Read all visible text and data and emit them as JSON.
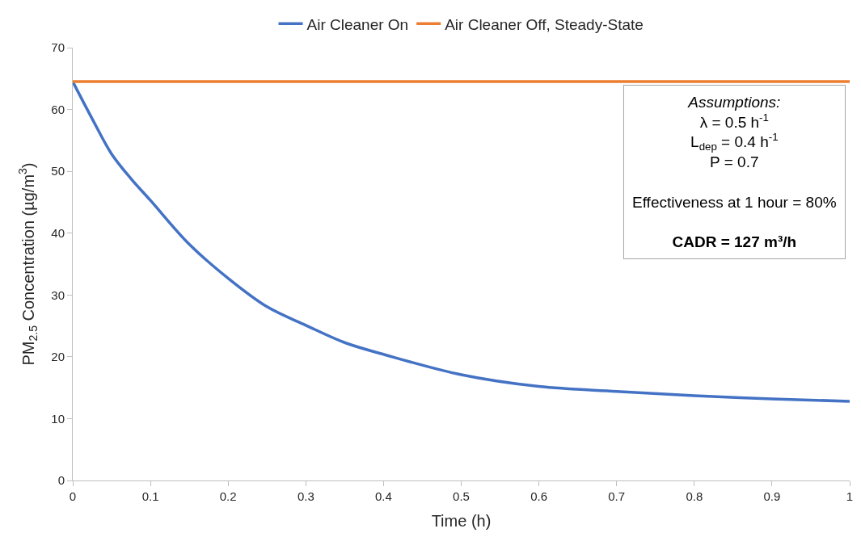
{
  "chart_data": {
    "type": "line",
    "xlabel": "Time (h)",
    "ylabel": "PM$_{2.5}$ Concentration (µg/m$^{3}$)",
    "x": [
      0,
      0.025,
      0.05,
      0.075,
      0.1,
      0.15,
      0.2,
      0.25,
      0.3,
      0.35,
      0.4,
      0.5,
      0.6,
      0.7,
      0.8,
      0.9,
      1
    ],
    "series": [
      {
        "name": "Air Cleaner On",
        "color": "#4472c4",
        "values": [
          64.5,
          58.5,
          52.8,
          48.8,
          45.3,
          38.2,
          32.7,
          28.1,
          25.1,
          22.3,
          20.4,
          17.1,
          15.2,
          14.4,
          13.7,
          13.2,
          12.8
        ]
      },
      {
        "name": "Air Cleaner Off, Steady-State",
        "color": "#ed7d31",
        "values": [
          64.5,
          64.5,
          64.5,
          64.5,
          64.5,
          64.5,
          64.5,
          64.5,
          64.5,
          64.5,
          64.5,
          64.5,
          64.5,
          64.5,
          64.5,
          64.5,
          64.5
        ]
      }
    ],
    "xlim": [
      0,
      1
    ],
    "xticks": [
      0,
      0.1,
      0.2,
      0.3,
      0.4,
      0.5,
      0.6,
      0.7,
      0.8,
      0.9,
      1
    ],
    "ylim": [
      0,
      70
    ],
    "yticks": [
      0,
      10,
      20,
      30,
      40,
      50,
      60,
      70
    ],
    "legend": "top",
    "marker": "none",
    "line_style": "solid",
    "annotations": [
      "*Assumptions:*\nλ = 0.5 h$^{-1}$\nL$_{dep}$ = 0.4 h$^{-1}$\nP = 0.7\n\nEffectiveness at 1 hour = 80%\n\n**CADR = 127 m³/h**"
    ]
  }
}
